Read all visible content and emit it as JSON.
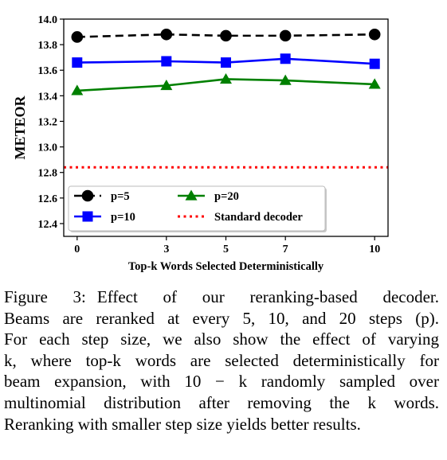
{
  "chart_data": {
    "type": "line",
    "xlabel": "Top-k Words Selected Deterministically",
    "ylabel": "METEOR",
    "x": [
      0,
      3,
      5,
      7,
      10
    ],
    "x_tick_labels": [
      "0",
      "3",
      "5",
      "7",
      "10"
    ],
    "ylim": [
      12.3,
      14.0
    ],
    "y_ticks": [
      12.4,
      12.6,
      12.8,
      13.0,
      13.2,
      13.4,
      13.6,
      13.8,
      14.0
    ],
    "y_tick_labels": [
      "12.4",
      "12.6",
      "12.8",
      "13.0",
      "13.2",
      "13.4",
      "13.6",
      "13.8",
      "14.0"
    ],
    "grid": false,
    "legend_position": "lower-left",
    "series": [
      {
        "name": "p=5",
        "values": [
          13.86,
          13.88,
          13.87,
          13.87,
          13.88
        ],
        "color": "#000000",
        "line_style": "dashed",
        "marker": "circle"
      },
      {
        "name": "p=10",
        "values": [
          13.66,
          13.67,
          13.66,
          13.69,
          13.65
        ],
        "color": "#0000ff",
        "line_style": "solid",
        "marker": "square"
      },
      {
        "name": "p=20",
        "values": [
          13.44,
          13.48,
          13.53,
          13.52,
          13.49
        ],
        "color": "#008000",
        "line_style": "solid",
        "marker": "triangle"
      }
    ],
    "reference_lines": [
      {
        "name": "Standard decoder",
        "value": 12.84,
        "color": "#ff0000",
        "line_style": "dotted"
      }
    ]
  },
  "caption": {
    "label": "Figure 3:",
    "lines": [
      "Effect of our reranking-based decoder.",
      "Beams are reranked at every 5, 10, and 20 steps (p).",
      "For each step size, we also show the effect of varying",
      "k, where top-k words are selected deterministically for",
      "beam expansion, with 10 − k randomly sampled over",
      "multinomial distribution after removing the k words.",
      "Reranking with smaller step size yields better results."
    ]
  }
}
